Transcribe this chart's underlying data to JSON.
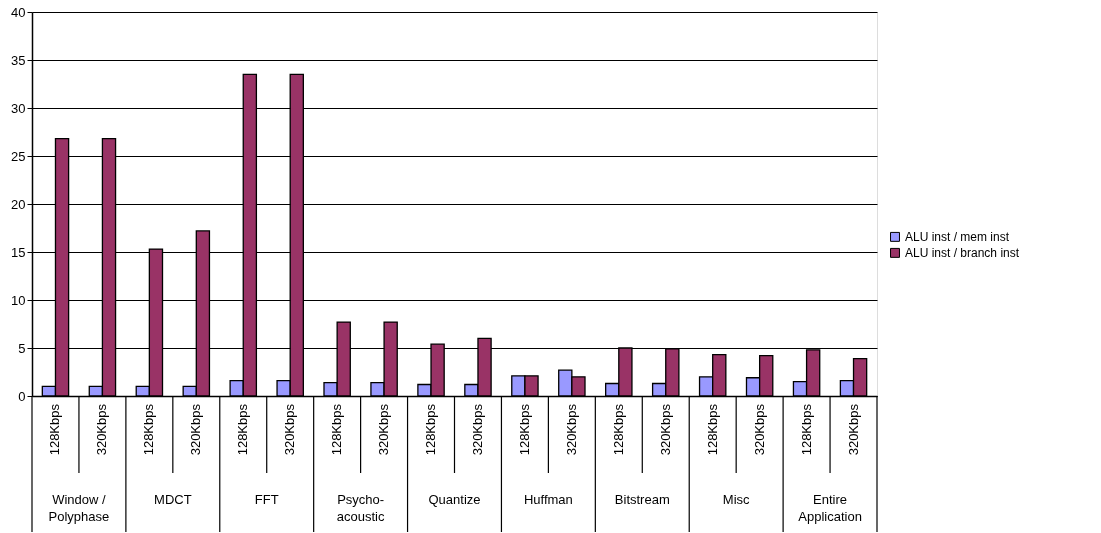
{
  "chart_data": {
    "type": "bar",
    "categories": [
      "128Kbps",
      "320Kbps",
      "128Kbps",
      "320Kbps",
      "128Kbps",
      "320Kbps",
      "128Kbps",
      "320Kbps",
      "128Kbps",
      "320Kbps",
      "128Kbps",
      "320Kbps",
      "128Kbps",
      "320Kbps",
      "128Kbps",
      "320Kbps",
      "128Kbps",
      "320Kbps"
    ],
    "series": [
      {
        "name": "ALU inst / mem inst",
        "color": "#9999ff",
        "values": [
          1.0,
          1.0,
          1.0,
          1.0,
          1.6,
          1.6,
          1.4,
          1.4,
          1.2,
          1.2,
          2.1,
          2.7,
          1.3,
          1.3,
          2.0,
          1.9,
          1.5,
          1.6
        ]
      },
      {
        "name": "ALU inst / branch inst",
        "color": "#993366",
        "values": [
          26.8,
          26.8,
          15.3,
          17.2,
          33.5,
          33.5,
          7.7,
          7.7,
          5.4,
          6.0,
          2.1,
          2.0,
          5.0,
          4.9,
          4.3,
          4.2,
          4.8,
          3.9
        ]
      }
    ],
    "annotations": [
      "Window / Polyphase",
      "MDCT",
      "FFT",
      "Psycho-acoustic",
      "Quantize",
      "Huffman",
      "Bitstream",
      "Misc",
      "Entire Application"
    ],
    "ylim": [
      0,
      40
    ],
    "yticks": [
      0,
      5,
      10,
      15,
      20,
      25,
      30,
      35,
      40
    ],
    "grid": "y",
    "legend": "right"
  }
}
